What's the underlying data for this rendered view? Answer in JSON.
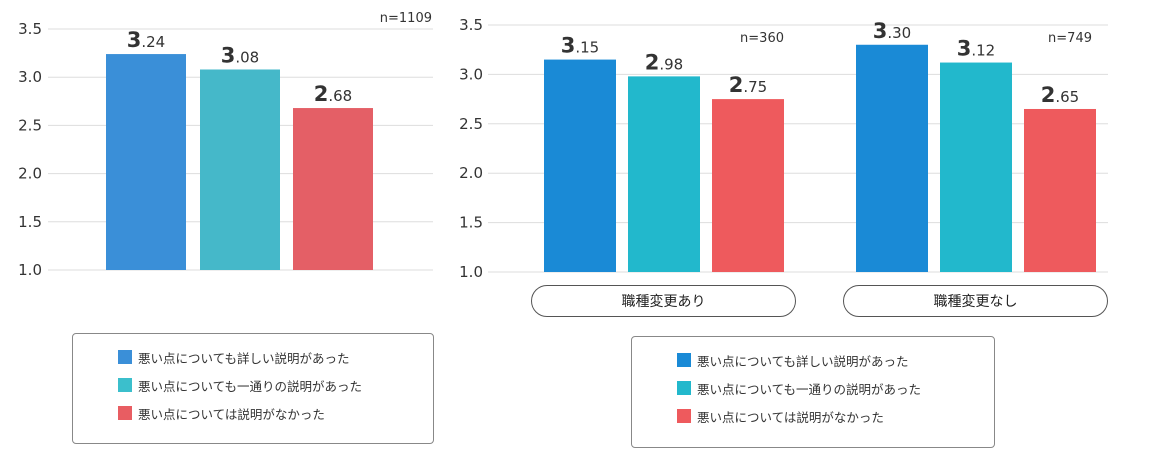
{
  "chart_data": [
    {
      "type": "bar",
      "ylim": [
        1.0,
        3.5
      ],
      "yticks": [
        "1.0",
        "1.5",
        "2.0",
        "2.5",
        "3.0",
        "3.5"
      ],
      "n_label": "n=1109",
      "series": [
        {
          "name": "悪い点についても詳しい説明があった",
          "values": [
            3.24
          ],
          "labels": [
            "3.24"
          ]
        },
        {
          "name": "悪い点についても一通りの説明があった",
          "values": [
            3.08
          ],
          "labels": [
            "3.08"
          ]
        },
        {
          "name": "悪い点については説明がなかった",
          "values": [
            2.68
          ],
          "labels": [
            "2.68"
          ]
        }
      ]
    },
    {
      "type": "bar",
      "ylim": [
        1.0,
        3.5
      ],
      "yticks": [
        "1.0",
        "1.5",
        "2.0",
        "2.5",
        "3.0",
        "3.5"
      ],
      "categories": [
        "職種変更あり",
        "職種変更なし"
      ],
      "n_labels": [
        "n=360",
        "n=749"
      ],
      "series": [
        {
          "name": "悪い点についても詳しい説明があった",
          "values": [
            3.15,
            3.3
          ],
          "labels": [
            "3.15",
            "3.30"
          ]
        },
        {
          "name": "悪い点についても一通りの説明があった",
          "values": [
            2.98,
            3.12
          ],
          "labels": [
            "2.98",
            "3.12"
          ]
        },
        {
          "name": "悪い点については説明がなかった",
          "values": [
            2.75,
            2.65
          ],
          "labels": [
            "2.75",
            "2.65"
          ]
        }
      ]
    }
  ],
  "legend": [
    {
      "label": "悪い点についても詳しい説明があった",
      "color": "#3a8fd8"
    },
    {
      "label": "悪い点についても一通りの説明があった",
      "color": "#3bbfcc"
    },
    {
      "label": "悪い点については説明がなかった",
      "color": "#e85d62"
    }
  ]
}
